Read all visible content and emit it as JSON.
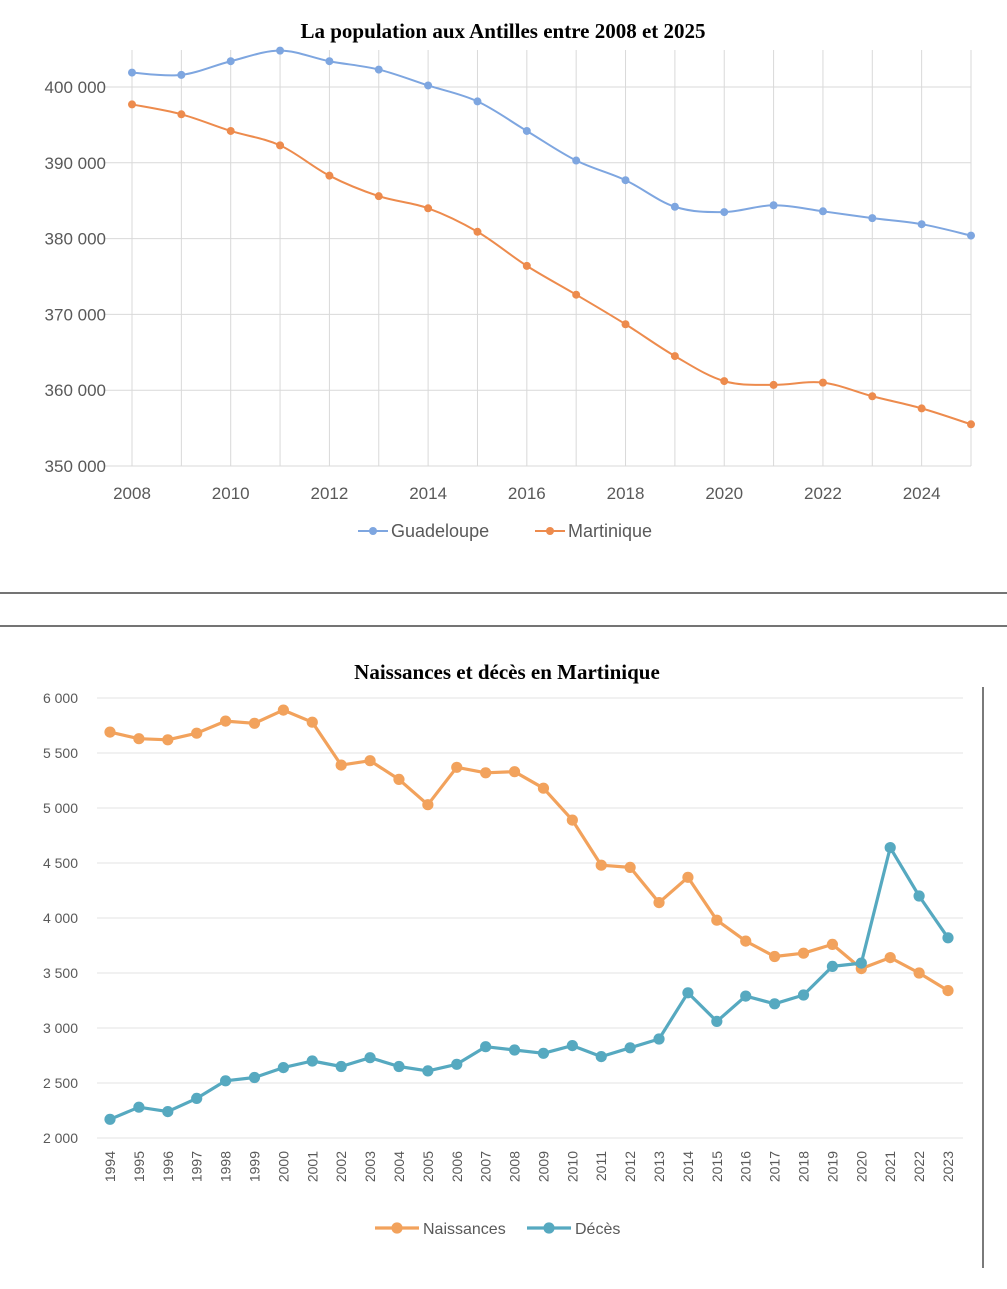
{
  "chart_data": [
    {
      "type": "line",
      "title": "La population aux Antilles entre 2008 et 2025",
      "xlabel": "",
      "ylabel": "",
      "x": [
        2008,
        2009,
        2010,
        2011,
        2012,
        2013,
        2014,
        2015,
        2016,
        2017,
        2018,
        2019,
        2020,
        2021,
        2022,
        2023,
        2024,
        2025
      ],
      "xlim": [
        2008,
        2025
      ],
      "xticks": [
        "2008",
        "2010",
        "2012",
        "2014",
        "2016",
        "2018",
        "2020",
        "2022",
        "2024"
      ],
      "ylim": [
        350000,
        405000
      ],
      "yticks": [
        "350 000",
        "360 000",
        "370 000",
        "380 000",
        "390 000",
        "400 000"
      ],
      "grid": true,
      "legend": "bottom",
      "series": [
        {
          "name": "Guadeloupe",
          "color": "#7ea6e0",
          "values": [
            401900,
            401600,
            403400,
            404800,
            403400,
            402300,
            400200,
            398100,
            394200,
            390300,
            387700,
            384200,
            383500,
            384400,
            383600,
            382700,
            381900,
            380400
          ]
        },
        {
          "name": "Martinique",
          "color": "#ed8b4d",
          "values": [
            397700,
            396400,
            394200,
            392300,
            388300,
            385600,
            384000,
            380900,
            376400,
            372600,
            368700,
            364500,
            361200,
            360700,
            361000,
            359200,
            357600,
            355500
          ]
        }
      ]
    },
    {
      "type": "line",
      "title": "Naissances et décès en Martinique",
      "xlabel": "",
      "ylabel": "",
      "categories": [
        "1994",
        "1995",
        "1996",
        "1997",
        "1998",
        "1999",
        "2000",
        "2001",
        "2002",
        "2003",
        "2004",
        "2005",
        "2006",
        "2007",
        "2008",
        "2009",
        "2010",
        "2011",
        "2012",
        "2013",
        "2014",
        "2015",
        "2016",
        "2017",
        "2018",
        "2019",
        "2020",
        "2021",
        "2022",
        "2023"
      ],
      "ylim": [
        2000,
        6000
      ],
      "yticks": [
        "2 000",
        "2 500",
        "3 000",
        "3 500",
        "4 000",
        "4 500",
        "5 000",
        "5 500",
        "6 000"
      ],
      "grid": true,
      "legend": "bottom",
      "series": [
        {
          "name": "Naissances",
          "color": "#f2a25c",
          "values": [
            5690,
            5630,
            5620,
            5680,
            5790,
            5770,
            5890,
            5780,
            5390,
            5430,
            5260,
            5030,
            5370,
            5320,
            5330,
            5180,
            4890,
            4480,
            4460,
            4140,
            4370,
            3980,
            3790,
            3650,
            3680,
            3760,
            3540,
            3640,
            3500,
            3340
          ]
        },
        {
          "name": "Décès",
          "color": "#56a9c0",
          "values": [
            2170,
            2280,
            2240,
            2360,
            2520,
            2550,
            2640,
            2700,
            2650,
            2730,
            2650,
            2610,
            2670,
            2830,
            2800,
            2770,
            2840,
            2740,
            2820,
            2900,
            3320,
            3060,
            3290,
            3220,
            3300,
            3560,
            3590,
            4640,
            4200,
            3820
          ]
        }
      ]
    }
  ]
}
